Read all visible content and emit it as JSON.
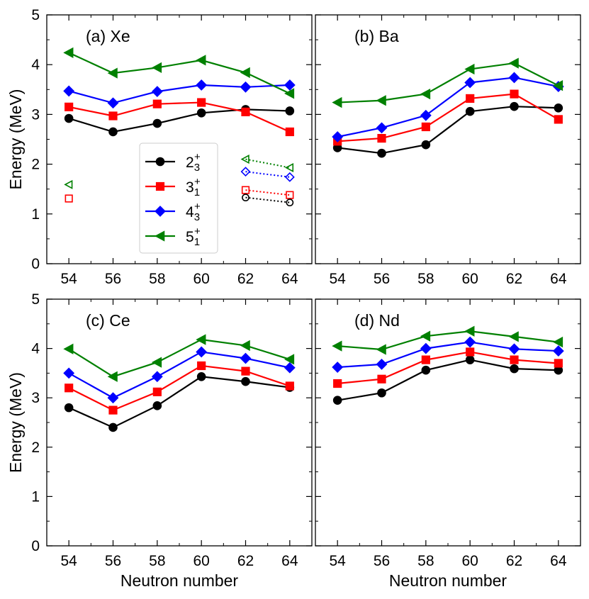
{
  "chart_data": {
    "type": "line",
    "ylabel": "Energy (MeV)",
    "xlabel": "Neutron number",
    "ylim": [
      0,
      5
    ],
    "xlim": [
      53,
      65
    ],
    "x": [
      54,
      56,
      58,
      60,
      62,
      64
    ],
    "y_ticks": [
      "0",
      "1",
      "2",
      "3",
      "4",
      "5"
    ],
    "x_ticks": [
      "54",
      "56",
      "58",
      "60",
      "62",
      "64"
    ],
    "legend": [
      {
        "name": "2",
        "sub": "3",
        "sup": "+",
        "color": "#000000",
        "marker": "circle"
      },
      {
        "name": "3",
        "sub": "1",
        "sup": "+",
        "color": "#ff0000",
        "marker": "square"
      },
      {
        "name": "4",
        "sub": "3",
        "sup": "+",
        "color": "#0000ff",
        "marker": "diamond"
      },
      {
        "name": "5",
        "sub": "1",
        "sup": "+",
        "color": "#008000",
        "marker": "triangle-left"
      }
    ],
    "panels": [
      {
        "label": "(a) Xe",
        "series": [
          {
            "name": "2_3+",
            "values": [
              2.92,
              2.65,
              2.82,
              3.03,
              3.1,
              3.07
            ]
          },
          {
            "name": "3_1+",
            "values": [
              3.15,
              2.97,
              3.21,
              3.24,
              3.05,
              2.65
            ]
          },
          {
            "name": "4_3+",
            "values": [
              3.47,
              3.23,
              3.46,
              3.59,
              3.55,
              3.59
            ]
          },
          {
            "name": "5_1+",
            "values": [
              4.24,
              3.83,
              3.94,
              4.09,
              3.84,
              3.42
            ]
          }
        ],
        "experimental": [
          {
            "name": "3_1+ exp",
            "series_index": 1,
            "points": [
              [
                54,
                1.31
              ],
              [
                62,
                1.48
              ],
              [
                64,
                1.38
              ]
            ]
          },
          {
            "name": "5_1+ exp",
            "series_index": 3,
            "points": [
              [
                54,
                1.59
              ],
              [
                62,
                2.1
              ],
              [
                64,
                1.93
              ]
            ]
          },
          {
            "name": "4_3+ exp",
            "series_index": 2,
            "points": [
              [
                62,
                1.85
              ],
              [
                64,
                1.74
              ]
            ]
          },
          {
            "name": "2_3+ exp",
            "series_index": 0,
            "points": [
              [
                62,
                1.33
              ],
              [
                64,
                1.23
              ]
            ]
          }
        ]
      },
      {
        "label": "(b) Ba",
        "series": [
          {
            "name": "2_3+",
            "values": [
              2.33,
              2.22,
              2.39,
              3.06,
              3.16,
              3.13
            ]
          },
          {
            "name": "3_1+",
            "values": [
              2.46,
              2.52,
              2.75,
              3.32,
              3.41,
              2.9
            ]
          },
          {
            "name": "4_3+",
            "values": [
              2.55,
              2.73,
              2.98,
              3.64,
              3.74,
              3.56
            ]
          },
          {
            "name": "5_1+",
            "values": [
              3.24,
              3.28,
              3.41,
              3.91,
              4.03,
              3.58
            ]
          }
        ],
        "experimental": []
      },
      {
        "label": "(c) Ce",
        "series": [
          {
            "name": "2_3+",
            "values": [
              2.8,
              2.4,
              2.84,
              3.43,
              3.33,
              3.21
            ]
          },
          {
            "name": "3_1+",
            "values": [
              3.2,
              2.75,
              3.12,
              3.65,
              3.54,
              3.24
            ]
          },
          {
            "name": "4_3+",
            "values": [
              3.5,
              3.0,
              3.43,
              3.93,
              3.8,
              3.61
            ]
          },
          {
            "name": "5_1+",
            "values": [
              3.99,
              3.43,
              3.72,
              4.18,
              4.06,
              3.78
            ]
          }
        ],
        "experimental": []
      },
      {
        "label": "(d) Nd",
        "series": [
          {
            "name": "2_3+",
            "values": [
              2.95,
              3.1,
              3.56,
              3.77,
              3.59,
              3.56
            ]
          },
          {
            "name": "3_1+",
            "values": [
              3.29,
              3.38,
              3.77,
              3.93,
              3.77,
              3.7
            ]
          },
          {
            "name": "4_3+",
            "values": [
              3.62,
              3.68,
              4.0,
              4.13,
              3.99,
              3.95
            ]
          },
          {
            "name": "5_1+",
            "values": [
              4.05,
              3.98,
              4.25,
              4.35,
              4.24,
              4.13
            ]
          }
        ],
        "experimental": []
      }
    ]
  }
}
